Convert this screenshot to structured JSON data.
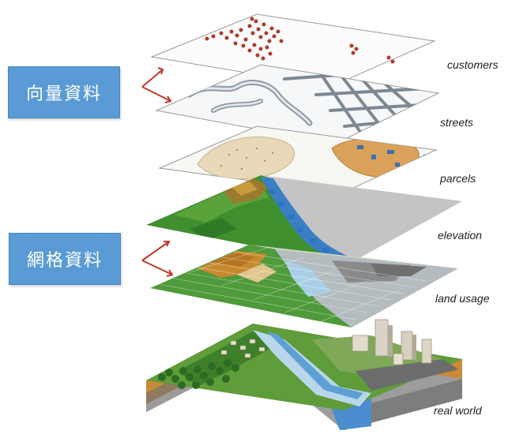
{
  "tags": {
    "vector": "向量資料",
    "raster": "網格資料"
  },
  "layers": {
    "customers": "customers",
    "streets": "streets",
    "parcels": "parcels",
    "elevation": "elevation",
    "land_usage": "land usage",
    "real_world": "real world"
  },
  "colors": {
    "tag_fill": "#5b9bd5",
    "arrow": "#c0392b",
    "customer_dot": "#b03a2e",
    "vegetation": "#3f8f2f",
    "water": "#3a7fc4",
    "grey_terrain": "#9a9a9a",
    "soil": "#c8842a"
  }
}
